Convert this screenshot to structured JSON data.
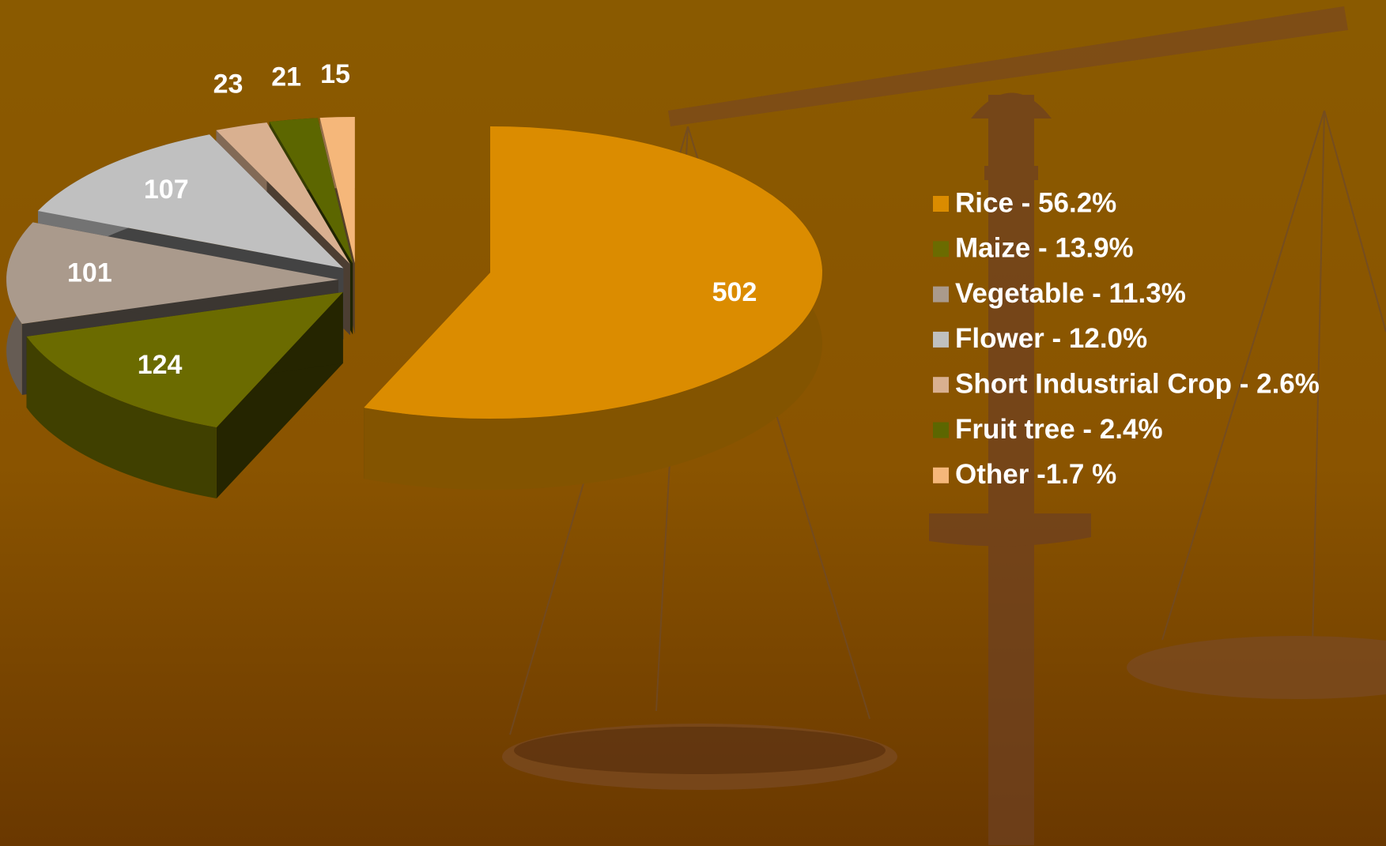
{
  "chart_data": {
    "type": "pie",
    "categories": [
      "Rice - 56.2%",
      "Maize - 13.9%",
      "Vegetable - 11.3%",
      "Flower - 12.0%",
      "Short Industrial Crop - 2.6%",
      "Fruit tree - 2.4%",
      "Other -1.7 %"
    ],
    "values": [
      502,
      124,
      101,
      107,
      23,
      21,
      15
    ],
    "colors": [
      "#db8c00",
      "#6b6b00",
      "#aa9a8c",
      "#c0c0c0",
      "#d9b090",
      "#5c6600",
      "#f5b77a"
    ],
    "legend": "right"
  }
}
